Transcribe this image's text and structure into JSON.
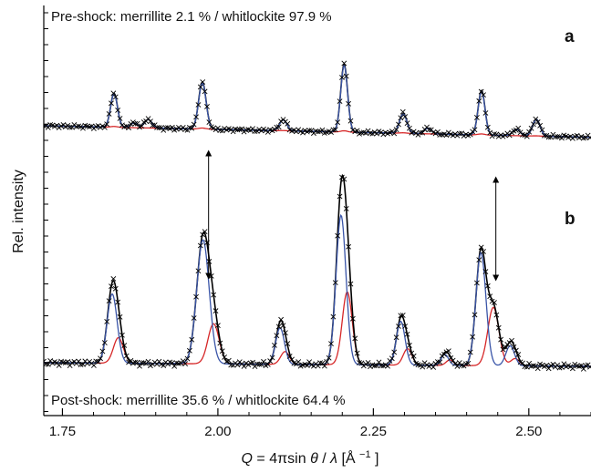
{
  "chart_data": {
    "type": "line",
    "xlabel": "Q = 4πsinθ/λ [Å⁻¹]",
    "xlabel_parts": {
      "q": "Q",
      "eq": " = 4πsin",
      "theta": "θ",
      "slash": "/",
      "lambda": "λ",
      "unit_open": " [Å",
      "unit_sup": "−1",
      "unit_close": "]"
    },
    "ylabel": "Rel. intensity",
    "xlim": [
      1.72,
      2.6
    ],
    "x_ticks": [
      1.75,
      2.0,
      2.25,
      2.5
    ],
    "x_tick_labels": [
      "1.75",
      "2.00",
      "2.25",
      "2.50"
    ],
    "minor_x_step": 0.05,
    "grid": false,
    "arrows": [
      {
        "x": 1.985,
        "from_panel": "a",
        "to_panel": "b"
      },
      {
        "x": 2.447,
        "from_panel": "a",
        "to_panel": "b"
      }
    ],
    "panels": [
      {
        "letter": "a",
        "annotation": "Pre-shock: merrillite 2.1 % / whitlockite 97.9 %",
        "background": {
          "y_start": 0.0,
          "y_end": -0.45
        },
        "series": [
          {
            "role": "observed",
            "marker": "x",
            "color": "#000000"
          },
          {
            "role": "calculated",
            "color": "#000000"
          },
          {
            "role": "whitlockite",
            "color": "#3a55a8"
          },
          {
            "role": "merrillite",
            "color": "#d62728"
          }
        ],
        "peaks": [
          {
            "x": 1.833,
            "w": 0.0055,
            "wh": 1.3,
            "me": 0.03
          },
          {
            "x": 1.865,
            "w": 0.006,
            "wh": 0.18,
            "me": 0.0
          },
          {
            "x": 1.888,
            "w": 0.006,
            "wh": 0.33,
            "me": 0.0
          },
          {
            "x": 1.975,
            "w": 0.006,
            "wh": 1.8,
            "me": 0.04
          },
          {
            "x": 2.105,
            "w": 0.006,
            "wh": 0.42,
            "me": 0.01
          },
          {
            "x": 2.203,
            "w": 0.0055,
            "wh": 2.6,
            "me": 0.05
          },
          {
            "x": 2.298,
            "w": 0.006,
            "wh": 0.75,
            "me": 0.02
          },
          {
            "x": 2.338,
            "w": 0.006,
            "wh": 0.22,
            "me": 0.0
          },
          {
            "x": 2.424,
            "w": 0.0055,
            "wh": 1.7,
            "me": 0.04
          },
          {
            "x": 2.48,
            "w": 0.006,
            "wh": 0.25,
            "me": 0.0
          },
          {
            "x": 2.512,
            "w": 0.006,
            "wh": 0.65,
            "me": 0.01
          }
        ]
      },
      {
        "letter": "b",
        "annotation": "Post-shock: merrillite 35.6 % / whitlockite 64.4 %",
        "background": {
          "y_start": 0.0,
          "y_end": -0.1
        },
        "series": [
          {
            "role": "observed",
            "marker": "x",
            "color": "#000000"
          },
          {
            "role": "calculated",
            "color": "#000000"
          },
          {
            "role": "whitlockite",
            "color": "#3a55a8"
          },
          {
            "role": "merrillite",
            "color": "#d62728"
          }
        ],
        "peaks": [
          {
            "x": 1.83,
            "w": 0.008,
            "wh": 1.9,
            "ws": 0.0,
            "mx": 1.84,
            "mw": 0.008,
            "me": 0.7
          },
          {
            "x": 1.976,
            "w": 0.01,
            "wh": 3.4,
            "mx": 1.993,
            "mw": 0.009,
            "me": 1.1
          },
          {
            "x": 2.1,
            "w": 0.007,
            "wh": 1.0,
            "mx": 2.108,
            "mw": 0.007,
            "me": 0.35
          },
          {
            "x": 2.198,
            "w": 0.008,
            "wh": 4.1,
            "mx": 2.208,
            "mw": 0.008,
            "me": 2.0
          },
          {
            "x": 2.294,
            "w": 0.007,
            "wh": 1.2,
            "mx": 2.305,
            "mw": 0.007,
            "me": 0.45
          },
          {
            "x": 2.365,
            "w": 0.006,
            "wh": 0.3,
            "mx": 2.373,
            "mw": 0.006,
            "me": 0.15
          },
          {
            "x": 2.423,
            "w": 0.008,
            "wh": 3.1,
            "mx": 2.443,
            "mw": 0.009,
            "me": 1.6
          },
          {
            "x": 2.47,
            "w": 0.007,
            "wh": 0.55,
            "mx": 2.478,
            "mw": 0.007,
            "me": 0.2
          }
        ]
      }
    ]
  }
}
